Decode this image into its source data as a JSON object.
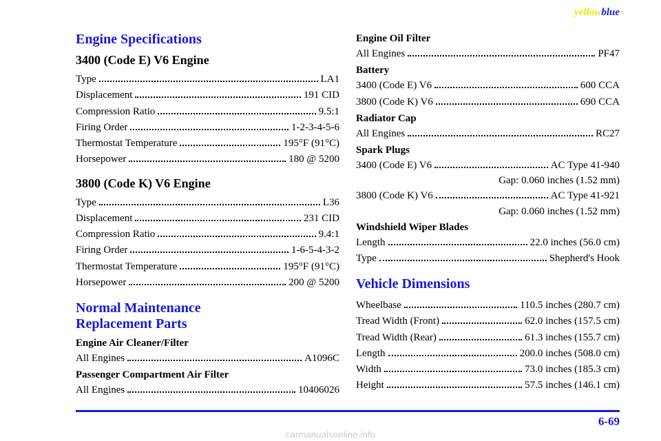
{
  "brand": {
    "y": "yellow",
    "b": "blue"
  },
  "left": {
    "engineSpecsHeading": "Engine Specifications",
    "engine3400": {
      "heading": "3400 (Code E) V6 Engine",
      "rows": [
        {
          "label": "Type",
          "value": "LA1"
        },
        {
          "label": "Displacement",
          "value": "191 CID"
        },
        {
          "label": "Compression Ratio",
          "value": "9.5:1"
        },
        {
          "label": "Firing Order",
          "value": "1-2-3-4-5-6"
        },
        {
          "label": "Thermostat Temperature",
          "value": "195°F (91°C)"
        },
        {
          "label": "Horsepower",
          "value": "180 @ 5200"
        }
      ]
    },
    "engine3800": {
      "heading": "3800 (Code K) V6 Engine",
      "rows": [
        {
          "label": "Type",
          "value": "L36"
        },
        {
          "label": "Displacement",
          "value": "231 CID"
        },
        {
          "label": "Compression Ratio",
          "value": "9.4:1"
        },
        {
          "label": "Firing Order",
          "value": "1-6-5-4-3-2"
        },
        {
          "label": "Thermostat Temperature",
          "value": "195°F (91°C)"
        },
        {
          "label": "Horsepower",
          "value": "200 @ 5200"
        }
      ]
    },
    "maintHeading1": "Normal Maintenance",
    "maintHeading2": "Replacement Parts",
    "groups": [
      {
        "heading": "Engine Air Cleaner/Filter",
        "rows": [
          {
            "label": "All Engines",
            "value": "A1096C"
          }
        ]
      },
      {
        "heading": "Passenger Compartment Air Filter",
        "rows": [
          {
            "label": "All Engines",
            "value": "10406026"
          }
        ]
      }
    ]
  },
  "right": {
    "groupsTop": [
      {
        "heading": "Engine Oil Filter",
        "rows": [
          {
            "label": "All Engines",
            "value": "PF47"
          }
        ]
      },
      {
        "heading": "Battery",
        "rows": [
          {
            "label": "3400 (Code E) V6",
            "value": "600 CCA"
          },
          {
            "label": "3800 (Code K) V6",
            "value": "690 CCA"
          }
        ]
      },
      {
        "heading": "Radiator Cap",
        "rows": [
          {
            "label": "All Engines",
            "value": "RC27"
          }
        ]
      }
    ],
    "sparkPlugs": {
      "heading": "Spark Plugs",
      "entries": [
        {
          "label": "3400 (Code E) V6",
          "value": "AC Type 41-940",
          "sub": "Gap: 0.060 inches (1.52 mm)"
        },
        {
          "label": "3800 (Code K) V6",
          "value": "AC Type 41-921",
          "sub": "Gap: 0.060 inches (1.52 mm)"
        }
      ]
    },
    "wiper": {
      "heading": "Windshield Wiper Blades",
      "rows": [
        {
          "label": "Length",
          "value": "22.0 inches (56.0 cm)"
        },
        {
          "label": "Type",
          "value": "Shepherd's Hook"
        }
      ]
    },
    "vehicleDimsHeading": "Vehicle Dimensions",
    "dims": [
      {
        "label": "Wheelbase",
        "value": "110.5 inches (280.7 cm)"
      },
      {
        "label": "Tread Width (Front)",
        "value": "62.0 inches (157.5 cm)"
      },
      {
        "label": "Tread Width (Rear)",
        "value": "61.3 inches (155.7 cm)"
      },
      {
        "label": "Length",
        "value": "200.0 inches (508.0 cm)"
      },
      {
        "label": "Width",
        "value": "73.0 inches (185.3 cm)"
      },
      {
        "label": "Height",
        "value": "57.5 inches (146.1 cm)"
      }
    ]
  },
  "pageNumber": "6-69",
  "watermark": "carmanualsonline.info"
}
